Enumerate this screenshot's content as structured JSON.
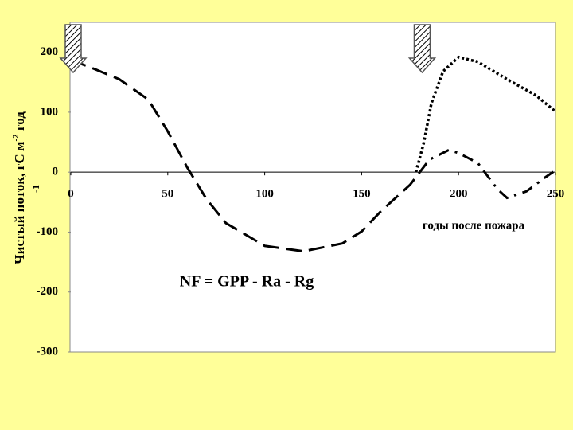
{
  "chart_data": {
    "type": "line",
    "y_label_parts": [
      "Чистый поток, гС м",
      "-2",
      " год",
      "-1"
    ],
    "x_label": "годы после пожара",
    "annotation": "NF = GPP - Ra - Rg",
    "xlim": [
      0,
      250
    ],
    "xticks": [
      0,
      50,
      100,
      150,
      200,
      250
    ],
    "ylim": [
      -300,
      250
    ],
    "yticks": [
      200,
      100,
      0,
      -100,
      -200,
      -300
    ],
    "events_x": [
      0,
      180
    ],
    "series": [
      {
        "color": "#000000",
        "style": "dashed",
        "x": [
          0,
          10,
          25,
          40,
          50,
          60,
          70,
          80,
          100,
          120,
          140,
          150,
          160,
          175,
          180
        ],
        "values": [
          187,
          175,
          155,
          121,
          68,
          8,
          -45,
          -85,
          -123,
          -132,
          -119,
          -99,
          -65,
          -21,
          0
        ]
      },
      {
        "color": "#000000",
        "style": "dash-dot",
        "x": [
          180,
          185,
          195,
          200,
          210,
          220,
          225,
          235,
          245,
          250
        ],
        "values": [
          0,
          21,
          37,
          32,
          15,
          -28,
          -43,
          -32,
          -8,
          3
        ]
      },
      {
        "color": "#000000",
        "style": "dotted",
        "x": [
          178,
          182,
          186,
          192,
          200,
          210,
          225,
          240,
          250
        ],
        "values": [
          0,
          48,
          115,
          168,
          192,
          184,
          155,
          128,
          101
        ]
      }
    ]
  }
}
